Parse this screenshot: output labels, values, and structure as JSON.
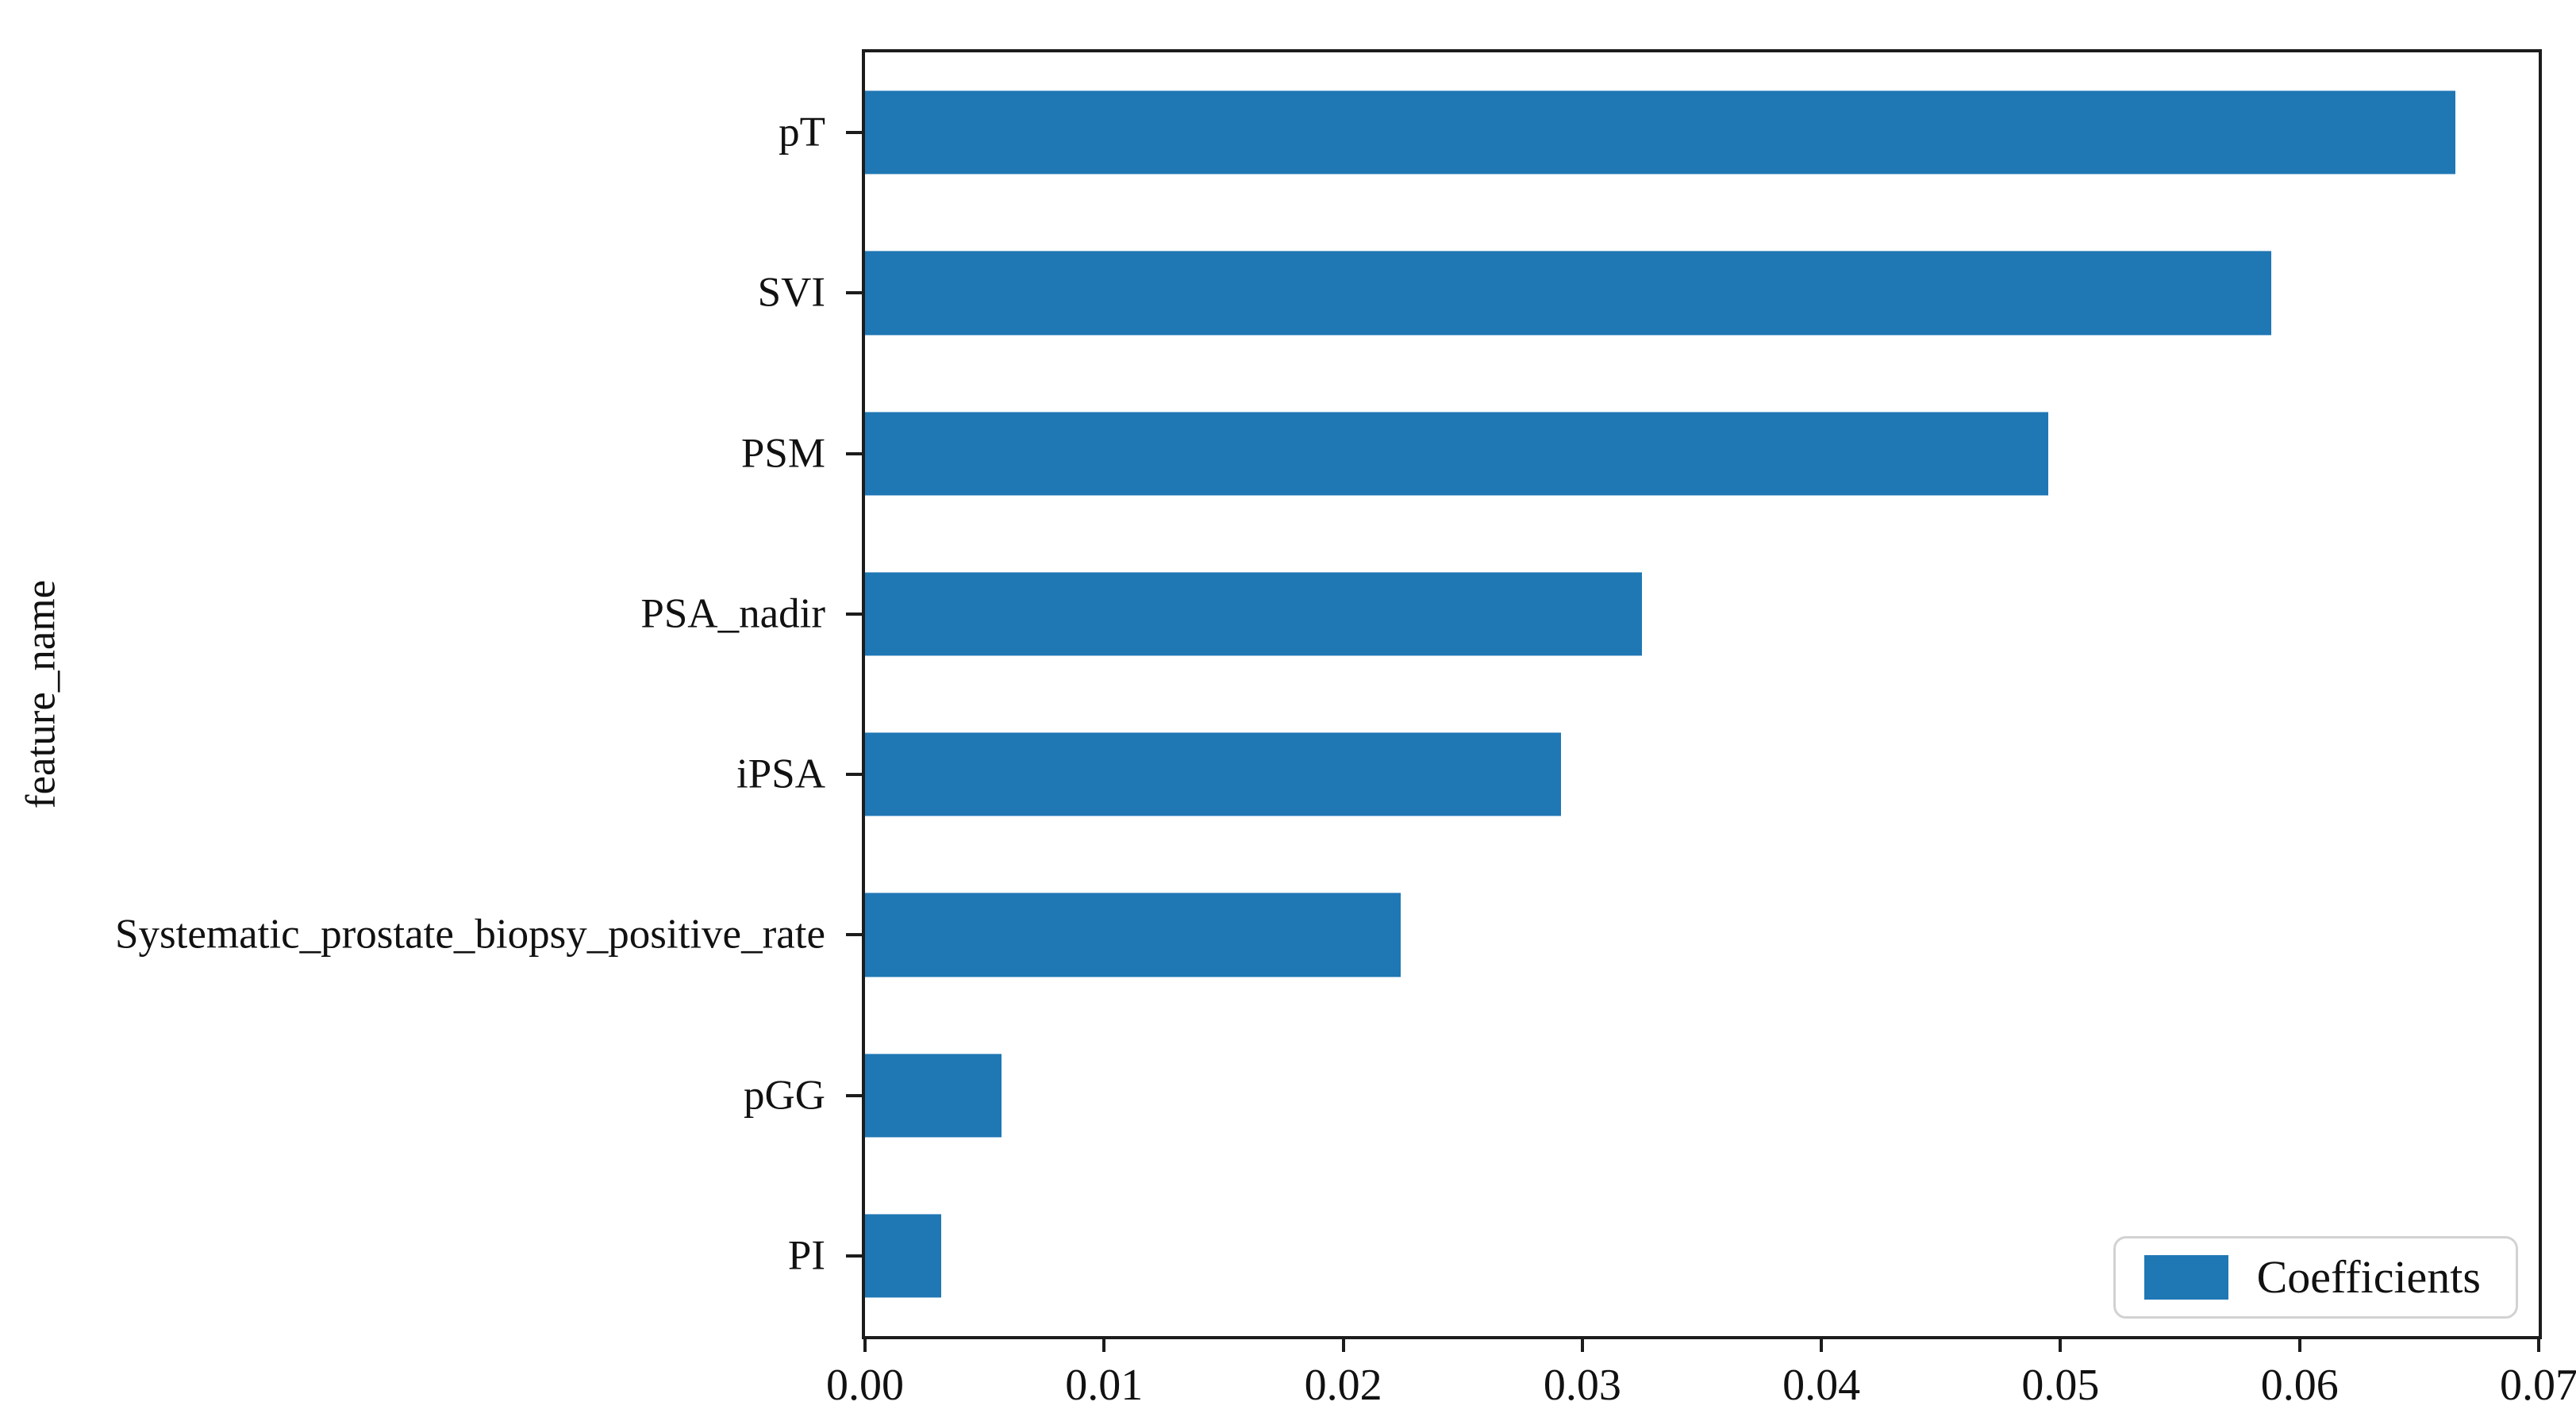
{
  "chart_data": {
    "type": "bar",
    "orientation": "horizontal",
    "title": "",
    "xlabel": "",
    "ylabel": "feature_name",
    "categories": [
      "pT",
      "SVI",
      "PSM",
      "PSA_nadir",
      "iPSA",
      "Systematic_prostate_biopsy_positive_rate",
      "pGG",
      "PI"
    ],
    "series_name": "Coefficients",
    "values": [
      0.0665,
      0.0588,
      0.0495,
      0.0325,
      0.0291,
      0.0224,
      0.0057,
      0.0032
    ],
    "xlim": [
      0,
      0.07
    ],
    "xtick_labels": [
      "0.00",
      "0.01",
      "0.02",
      "0.03",
      "0.04",
      "0.05",
      "0.06",
      "0.07"
    ],
    "grid": false,
    "legend_position": "lower right",
    "bar_color": "#1f77b4",
    "axis_color": "#1c1c1c",
    "legend_border_color": "#d2d2d2",
    "background_color": "#ffffff"
  }
}
